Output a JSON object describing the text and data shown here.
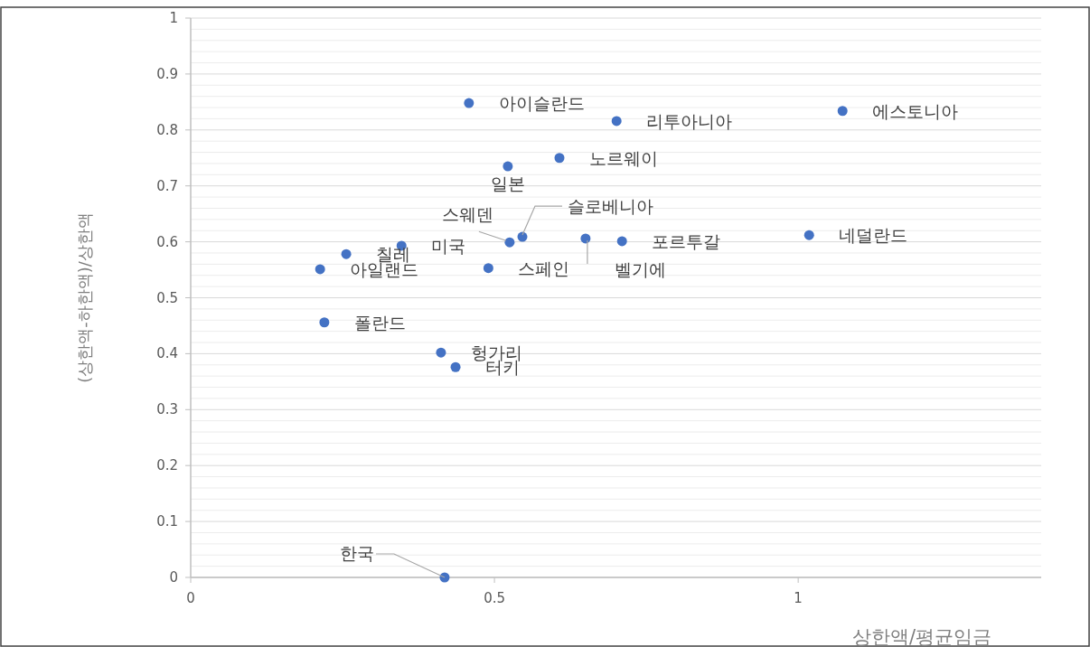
{
  "chart_data": {
    "type": "scatter",
    "xlabel": "상한액/평균임금",
    "ylabel": "(상한액-하한액)/상한액",
    "x": [
      0.418,
      0.458,
      0.701,
      1.073,
      0.607,
      0.522,
      0.546,
      0.525,
      0.347,
      0.256,
      0.71,
      0.65,
      1.018,
      0.213,
      0.49,
      0.22,
      0.412,
      0.436
    ],
    "values": [
      0,
      0.848,
      0.816,
      0.834,
      0.75,
      0.735,
      0.609,
      0.599,
      0.593,
      0.578,
      0.601,
      0.606,
      0.612,
      0.551,
      0.553,
      0.456,
      0.402,
      0.376
    ],
    "color": "#4472c4",
    "marker": "circle",
    "annotations": [
      {
        "text": "한국",
        "x": 0.418,
        "y": 0
      },
      {
        "text": "아이슬란드",
        "x": 0.458,
        "y": 0.848
      },
      {
        "text": "리투아니아",
        "x": 0.701,
        "y": 0.816
      },
      {
        "text": "에스토니아",
        "x": 1.073,
        "y": 0.834
      },
      {
        "text": "노르웨이",
        "x": 0.607,
        "y": 0.75
      },
      {
        "text": "일본",
        "x": 0.522,
        "y": 0.735
      },
      {
        "text": "슬로베니아",
        "x": 0.546,
        "y": 0.609
      },
      {
        "text": "스웨덴",
        "x": 0.525,
        "y": 0.599
      },
      {
        "text": "미국",
        "x": 0.347,
        "y": 0.593
      },
      {
        "text": "칠레",
        "x": 0.256,
        "y": 0.578
      },
      {
        "text": "포르투갈",
        "x": 0.71,
        "y": 0.601
      },
      {
        "text": "벨기에",
        "x": 0.65,
        "y": 0.606
      },
      {
        "text": "네덜란드",
        "x": 1.018,
        "y": 0.612
      },
      {
        "text": "아일랜드",
        "x": 0.213,
        "y": 0.551
      },
      {
        "text": "스페인",
        "x": 0.49,
        "y": 0.553
      },
      {
        "text": "폴란드",
        "x": 0.22,
        "y": 0.456
      },
      {
        "text": "헝가리",
        "x": 0.412,
        "y": 0.402
      },
      {
        "text": "터키",
        "x": 0.436,
        "y": 0.376
      }
    ],
    "xlim": [
      0,
      1.4
    ],
    "xticks": [
      0,
      0.5,
      1
    ],
    "ylim": [
      0,
      1
    ],
    "yticks": [
      0,
      {
        "value": 0.02,
        "label": null
      },
      {
        "value": 0.04,
        "label": null
      },
      {
        "value": 0.06,
        "label": null
      },
      {
        "value": 0.08,
        "label": null
      },
      0.1,
      {
        "value": 0.12,
        "label": null
      },
      {
        "value": 0.14,
        "label": null
      },
      {
        "value": 0.16,
        "label": null
      },
      {
        "value": 0.18,
        "label": null
      },
      0.2,
      {
        "value": 0.22,
        "label": null
      },
      {
        "value": 0.24,
        "label": null
      },
      {
        "value": 0.26,
        "label": null
      },
      {
        "value": 0.28,
        "label": null
      },
      0.3,
      {
        "value": 0.32,
        "label": null
      },
      {
        "value": 0.34,
        "label": null
      },
      {
        "value": 0.36,
        "label": null
      },
      {
        "value": 0.38,
        "label": null
      },
      0.4,
      {
        "value": 0.42,
        "label": null
      },
      {
        "value": 0.44,
        "label": null
      },
      {
        "value": 0.46,
        "label": null
      },
      {
        "value": 0.48,
        "label": null
      },
      0.5,
      {
        "value": 0.52,
        "label": null
      },
      {
        "value": 0.54,
        "label": null
      },
      {
        "value": 0.56,
        "label": null
      },
      {
        "value": 0.58,
        "label": null
      },
      0.6,
      {
        "value": 0.62,
        "label": null
      },
      {
        "value": 0.64,
        "label": null
      },
      {
        "value": 0.66,
        "label": null
      },
      {
        "value": 0.68,
        "label": null
      },
      0.7,
      {
        "value": 0.72,
        "label": null
      },
      {
        "value": 0.74,
        "label": null
      },
      {
        "value": 0.76,
        "label": null
      },
      {
        "value": 0.78,
        "label": null
      },
      0.8,
      {
        "value": 0.82,
        "label": null
      },
      {
        "value": 0.84,
        "label": null
      },
      {
        "value": 0.86,
        "label": null
      },
      {
        "value": 0.88,
        "label": null
      },
      0.9,
      {
        "value": 0.92,
        "label": null
      },
      {
        "value": 0.94,
        "label": null
      },
      {
        "value": 0.96,
        "label": null
      },
      {
        "value": 0.98,
        "label": null
      },
      1
    ],
    "grid": "y"
  }
}
